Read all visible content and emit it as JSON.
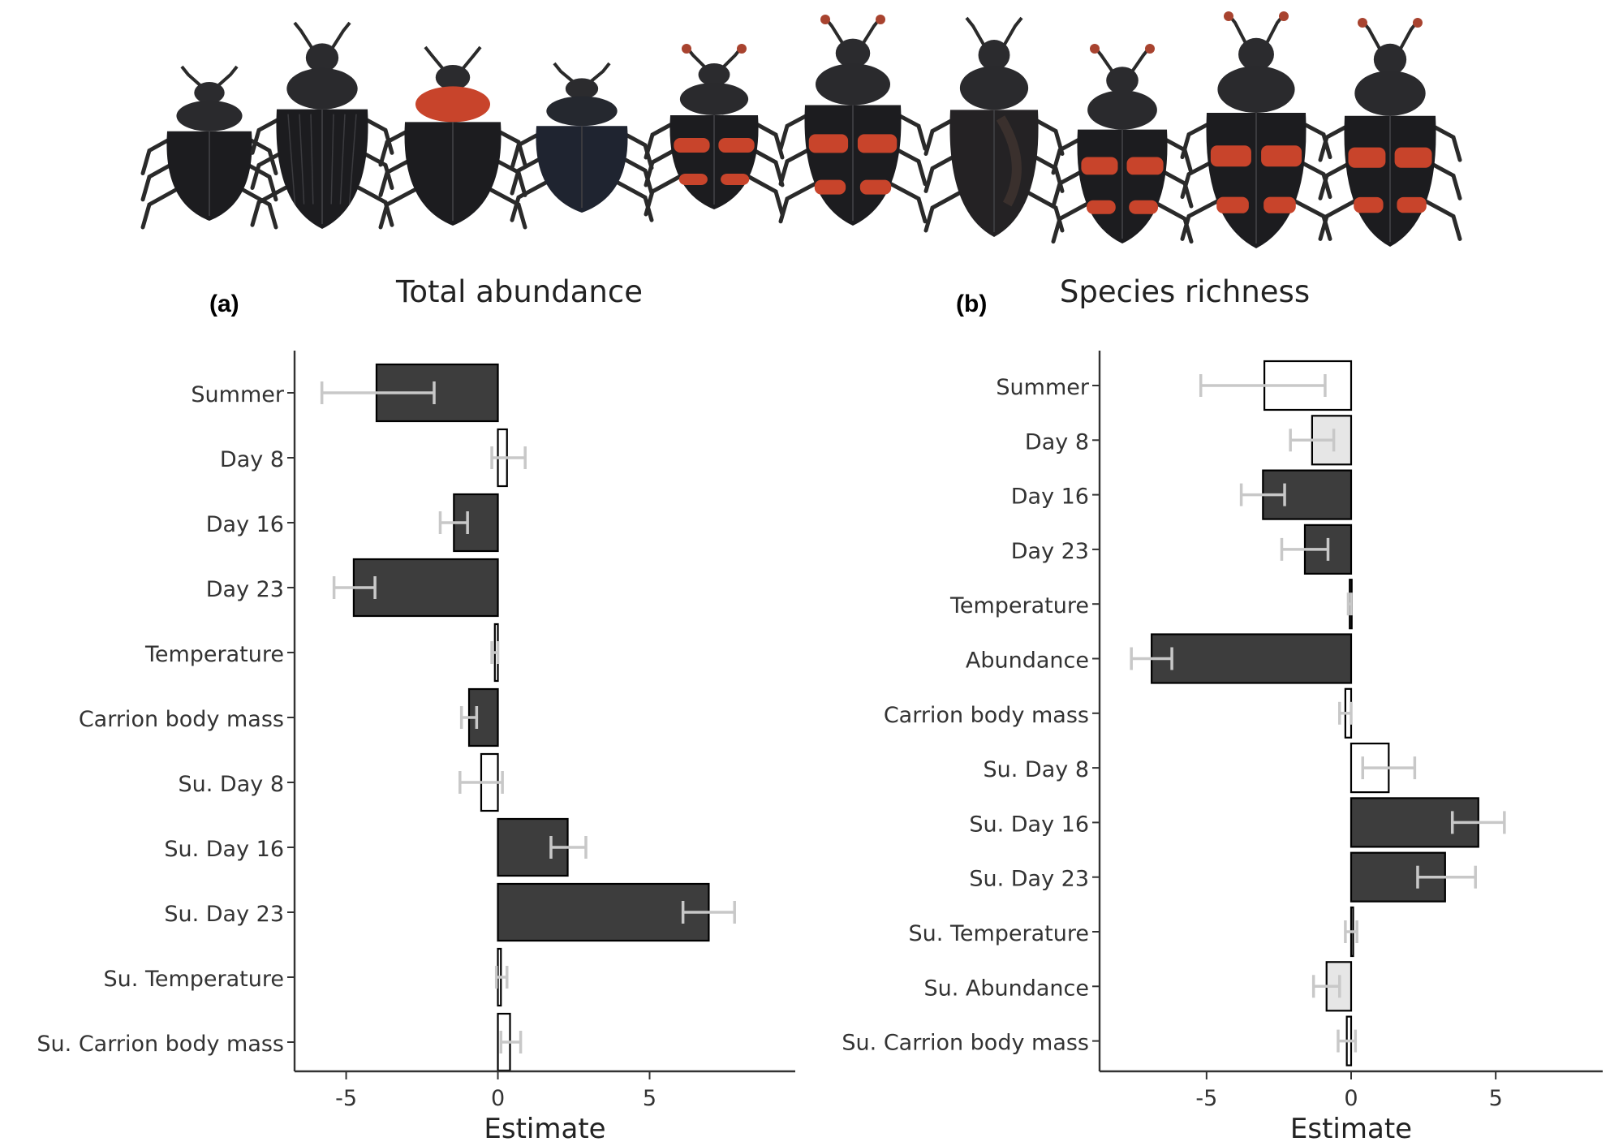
{
  "figure": {
    "beetles": [
      {
        "icon": "beetle-black-oval-icon",
        "name": ""
      },
      {
        "icon": "beetle-black-ridged-icon",
        "name": ""
      },
      {
        "icon": "beetle-orange-pronotum-icon",
        "name": ""
      },
      {
        "icon": "beetle-dark-blue-icon",
        "name": ""
      },
      {
        "icon": "beetle-orange-banded-icon",
        "name": ""
      },
      {
        "icon": "beetle-orange-banded-icon",
        "name": ""
      },
      {
        "icon": "beetle-black-shiny-icon",
        "name": ""
      },
      {
        "icon": "beetle-orange-banded-icon",
        "name": ""
      },
      {
        "icon": "beetle-orange-banded-icon",
        "name": ""
      },
      {
        "icon": "beetle-orange-banded-icon",
        "name": ""
      }
    ],
    "colors": {
      "significant_fill": "#3d3d3d",
      "nonsignificant_fill": "#ffffff",
      "marginal_fill": "#e6e6e6",
      "bar_outline": "#000000",
      "errorbar": "#c8c8c8",
      "axis": "#333333",
      "beetle_red": "#c8442b",
      "beetle_black": "#1f1f22"
    }
  },
  "chart_data": [
    {
      "panel_letter": "(a)",
      "title": "Total abundance",
      "type": "bar",
      "orientation": "horizontal",
      "xlabel": "Estimate",
      "ylabel": "",
      "xlim": [
        -6.7,
        9.8
      ],
      "xticks": [
        -5,
        0,
        5
      ],
      "xtick_labels": [
        "-5",
        "0",
        "5"
      ],
      "grid": false,
      "categories": [
        "Summer",
        "Day 8",
        "Day 16",
        "Day 23",
        "Temperature",
        "Carrion body mass",
        "Su. Day 8",
        "Su. Day 16",
        "Su. Day 23",
        "Su. Temperature",
        "Su. Carrion body mass"
      ],
      "values": [
        -4.0,
        0.3,
        -1.45,
        -4.75,
        -0.1,
        -0.95,
        -0.55,
        2.3,
        6.95,
        0.1,
        0.4
      ],
      "error_low": [
        -5.8,
        -0.2,
        -1.9,
        -5.4,
        -0.2,
        -1.2,
        -1.25,
        1.75,
        6.1,
        -0.05,
        0.1
      ],
      "error_high": [
        -2.1,
        0.9,
        -1.0,
        -4.05,
        0.0,
        -0.7,
        0.15,
        2.9,
        7.8,
        0.3,
        0.75
      ],
      "fill": [
        "significant",
        "nonsignificant",
        "significant",
        "significant",
        "nonsignificant",
        "significant",
        "nonsignificant",
        "significant",
        "significant",
        "nonsignificant",
        "nonsignificant"
      ]
    },
    {
      "panel_letter": "(b)",
      "title": "Species richness",
      "type": "bar",
      "orientation": "horizontal",
      "xlabel": "Estimate",
      "ylabel": "",
      "xlim": [
        -8.7,
        8.7
      ],
      "xticks": [
        -5,
        0,
        5
      ],
      "xtick_labels": [
        "-5",
        "0",
        "5"
      ],
      "grid": false,
      "categories": [
        "Summer",
        "Day 8",
        "Day 16",
        "Day 23",
        "Temperature",
        "Abundance",
        "Carrion body mass",
        "Su. Day 8",
        "Su. Day 16",
        "Su. Day 23",
        "Su. Temperature",
        "Su. Abundance",
        "Su. Carrion body mass"
      ],
      "values": [
        -3.0,
        -1.35,
        -3.05,
        -1.6,
        -0.05,
        -6.9,
        -0.2,
        1.3,
        4.4,
        3.25,
        0.0,
        -0.85,
        -0.15
      ],
      "error_low": [
        -5.2,
        -2.1,
        -3.8,
        -2.4,
        -0.1,
        -7.6,
        -0.4,
        0.4,
        3.5,
        2.3,
        -0.2,
        -1.3,
        -0.45
      ],
      "error_high": [
        -0.9,
        -0.6,
        -2.3,
        -0.8,
        0.0,
        -6.2,
        0.0,
        2.2,
        5.3,
        4.3,
        0.2,
        -0.4,
        0.15
      ],
      "fill": [
        "nonsignificant",
        "marginal",
        "significant",
        "significant",
        "significant",
        "significant",
        "nonsignificant",
        "nonsignificant",
        "significant",
        "significant",
        "nonsignificant",
        "marginal",
        "nonsignificant"
      ]
    }
  ]
}
